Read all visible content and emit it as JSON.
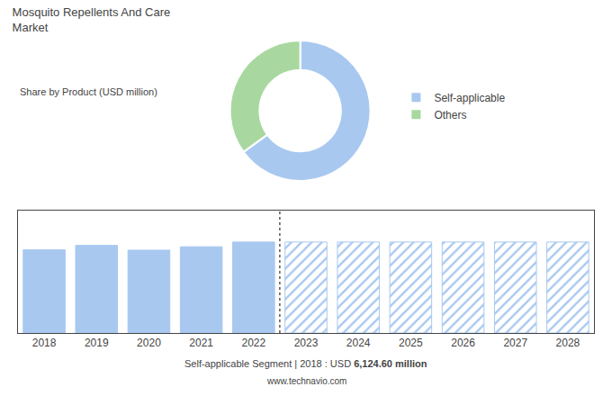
{
  "chart_data": [
    {
      "type": "donut",
      "title": "Mosquito Repellents And Care\nMarket",
      "subtitle": "Share by Product (USD million)",
      "categories": [
        "Self-applicable",
        "Others"
      ],
      "values": [
        65,
        35
      ],
      "colors": [
        "#a8c8f0",
        "#a8d8a0"
      ],
      "legend": "right"
    },
    {
      "type": "bar",
      "categories": [
        "2018",
        "2019",
        "2020",
        "2021",
        "2022",
        "2023",
        "2024",
        "2025",
        "2026",
        "2027",
        "2028"
      ],
      "series": [
        {
          "color": "#a8c8f0",
          "values": [
            6124.6,
            6450,
            6100,
            6350,
            6700,
            null,
            null,
            null,
            null,
            null,
            null
          ]
        },
        {
          "color": "#a8c8f0",
          "marker": "hatched",
          "values": [
            null,
            null,
            null,
            null,
            null,
            6700,
            6700,
            6700,
            6700,
            6700,
            6700
          ]
        }
      ],
      "ylim": [
        0,
        9045
      ],
      "yticks": [],
      "grid": false,
      "tick_labels": "x",
      "annotations": [
        "Self-applicable Segment",
        "|",
        "2018 : USD ",
        "6,124.60 million",
        "www.technavio.com"
      ]
    }
  ]
}
